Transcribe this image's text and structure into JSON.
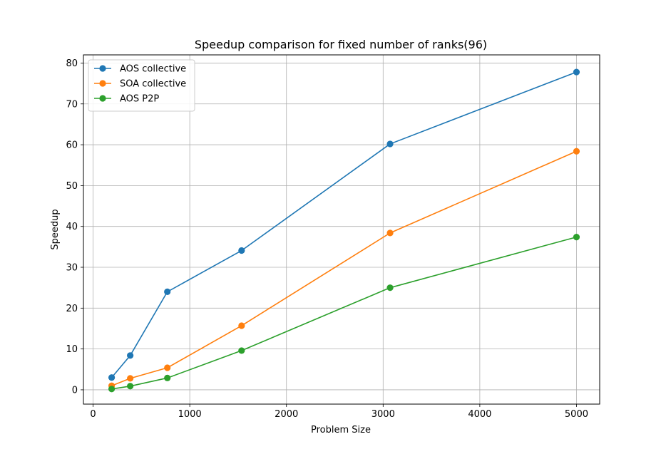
{
  "chart_data": {
    "type": "line",
    "title": "Speedup comparison for fixed number of ranks(96)",
    "xlabel": "Problem Size",
    "ylabel": "Speedup",
    "x": [
      192,
      384,
      768,
      1536,
      3072,
      5000
    ],
    "xlim": [
      -100,
      5240
    ],
    "ylim": [
      -3.5,
      82
    ],
    "xticks": [
      0,
      1000,
      2000,
      3000,
      4000,
      5000
    ],
    "xtick_labels": [
      "0",
      "1000",
      "2000",
      "3000",
      "4000",
      "5000"
    ],
    "yticks": [
      0,
      10,
      20,
      30,
      40,
      50,
      60,
      70,
      80
    ],
    "ytick_labels": [
      "0",
      "10",
      "20",
      "30",
      "40",
      "50",
      "60",
      "70",
      "80"
    ],
    "grid": true,
    "legend_position": "top-left",
    "series": [
      {
        "name": "AOS collective",
        "color": "#1f77b4",
        "marker": "circle",
        "values": [
          3.0,
          8.4,
          24.0,
          34.1,
          60.2,
          77.8
        ]
      },
      {
        "name": "SOA collective",
        "color": "#ff7f0e",
        "marker": "circle",
        "values": [
          1.0,
          2.8,
          5.4,
          15.7,
          38.4,
          58.4
        ]
      },
      {
        "name": "AOS P2P",
        "color": "#2ca02c",
        "marker": "circle",
        "values": [
          0.2,
          0.9,
          2.9,
          9.6,
          25.0,
          37.4
        ]
      }
    ]
  }
}
